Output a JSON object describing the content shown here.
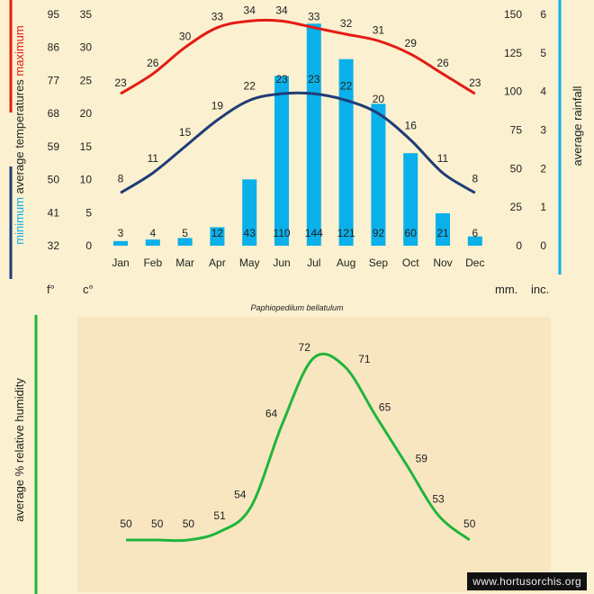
{
  "chart_data": [
    {
      "type": "bar+line",
      "title": "Paphiopedilum bellatulum",
      "categories": [
        "Jan",
        "Feb",
        "Mar",
        "Apr",
        "May",
        "Jun",
        "Jul",
        "Aug",
        "Sep",
        "Oct",
        "Nov",
        "Dec"
      ],
      "series": [
        {
          "name": "maximum average temperature (°C)",
          "color": "#e31b14",
          "values": [
            23,
            26,
            30,
            33,
            34,
            34,
            33,
            32,
            31,
            29,
            26,
            23
          ]
        },
        {
          "name": "minimum average temperature (°C)",
          "color": "#1f3c78",
          "values": [
            8,
            11,
            15,
            19,
            22,
            23,
            23,
            22,
            20,
            16,
            11,
            8
          ]
        },
        {
          "name": "average rainfall (mm)",
          "color": "#0ab0ea",
          "values": [
            3,
            4,
            5,
            12,
            43,
            110,
            144,
            121,
            92,
            60,
            21,
            6
          ]
        }
      ],
      "axes": {
        "fahrenheit": {
          "label": "f°",
          "ticks": [
            "95",
            "86",
            "77",
            "68",
            "59",
            "50",
            "41",
            "32"
          ]
        },
        "celsius": {
          "label": "c°",
          "ticks": [
            "35",
            "30",
            "25",
            "20",
            "15",
            "10",
            "5",
            "0"
          ],
          "ylim": [
            0,
            35
          ]
        },
        "rain_mm": {
          "label": "mm.",
          "ticks": [
            "150",
            "125",
            "100",
            "75",
            "50",
            "25",
            "0"
          ],
          "ylim": [
            0,
            150
          ]
        },
        "rain_inch": {
          "label": "inc.",
          "ticks": [
            "6",
            "5",
            "4",
            "3",
            "2",
            "1",
            "0"
          ]
        }
      },
      "left_label": {
        "part1": "minimum",
        "part2": "average temperatures",
        "part3": "maximum"
      },
      "right_label": "average rainfall"
    },
    {
      "type": "line",
      "ylabel": "average %  relative humidity",
      "categories": [
        "Jan",
        "Feb",
        "Mar",
        "Apr",
        "May",
        "Jun",
        "Jul",
        "Aug",
        "Sep",
        "Oct",
        "Nov",
        "Dec"
      ],
      "series": [
        {
          "name": "average % relative humidity",
          "color": "#20b53a",
          "values": [
            50,
            50,
            50,
            51,
            54,
            64,
            72,
            71,
            65,
            59,
            53,
            50
          ]
        }
      ],
      "ylim": [
        50,
        72
      ]
    }
  ],
  "watermark": "www.hortusorchis.org"
}
